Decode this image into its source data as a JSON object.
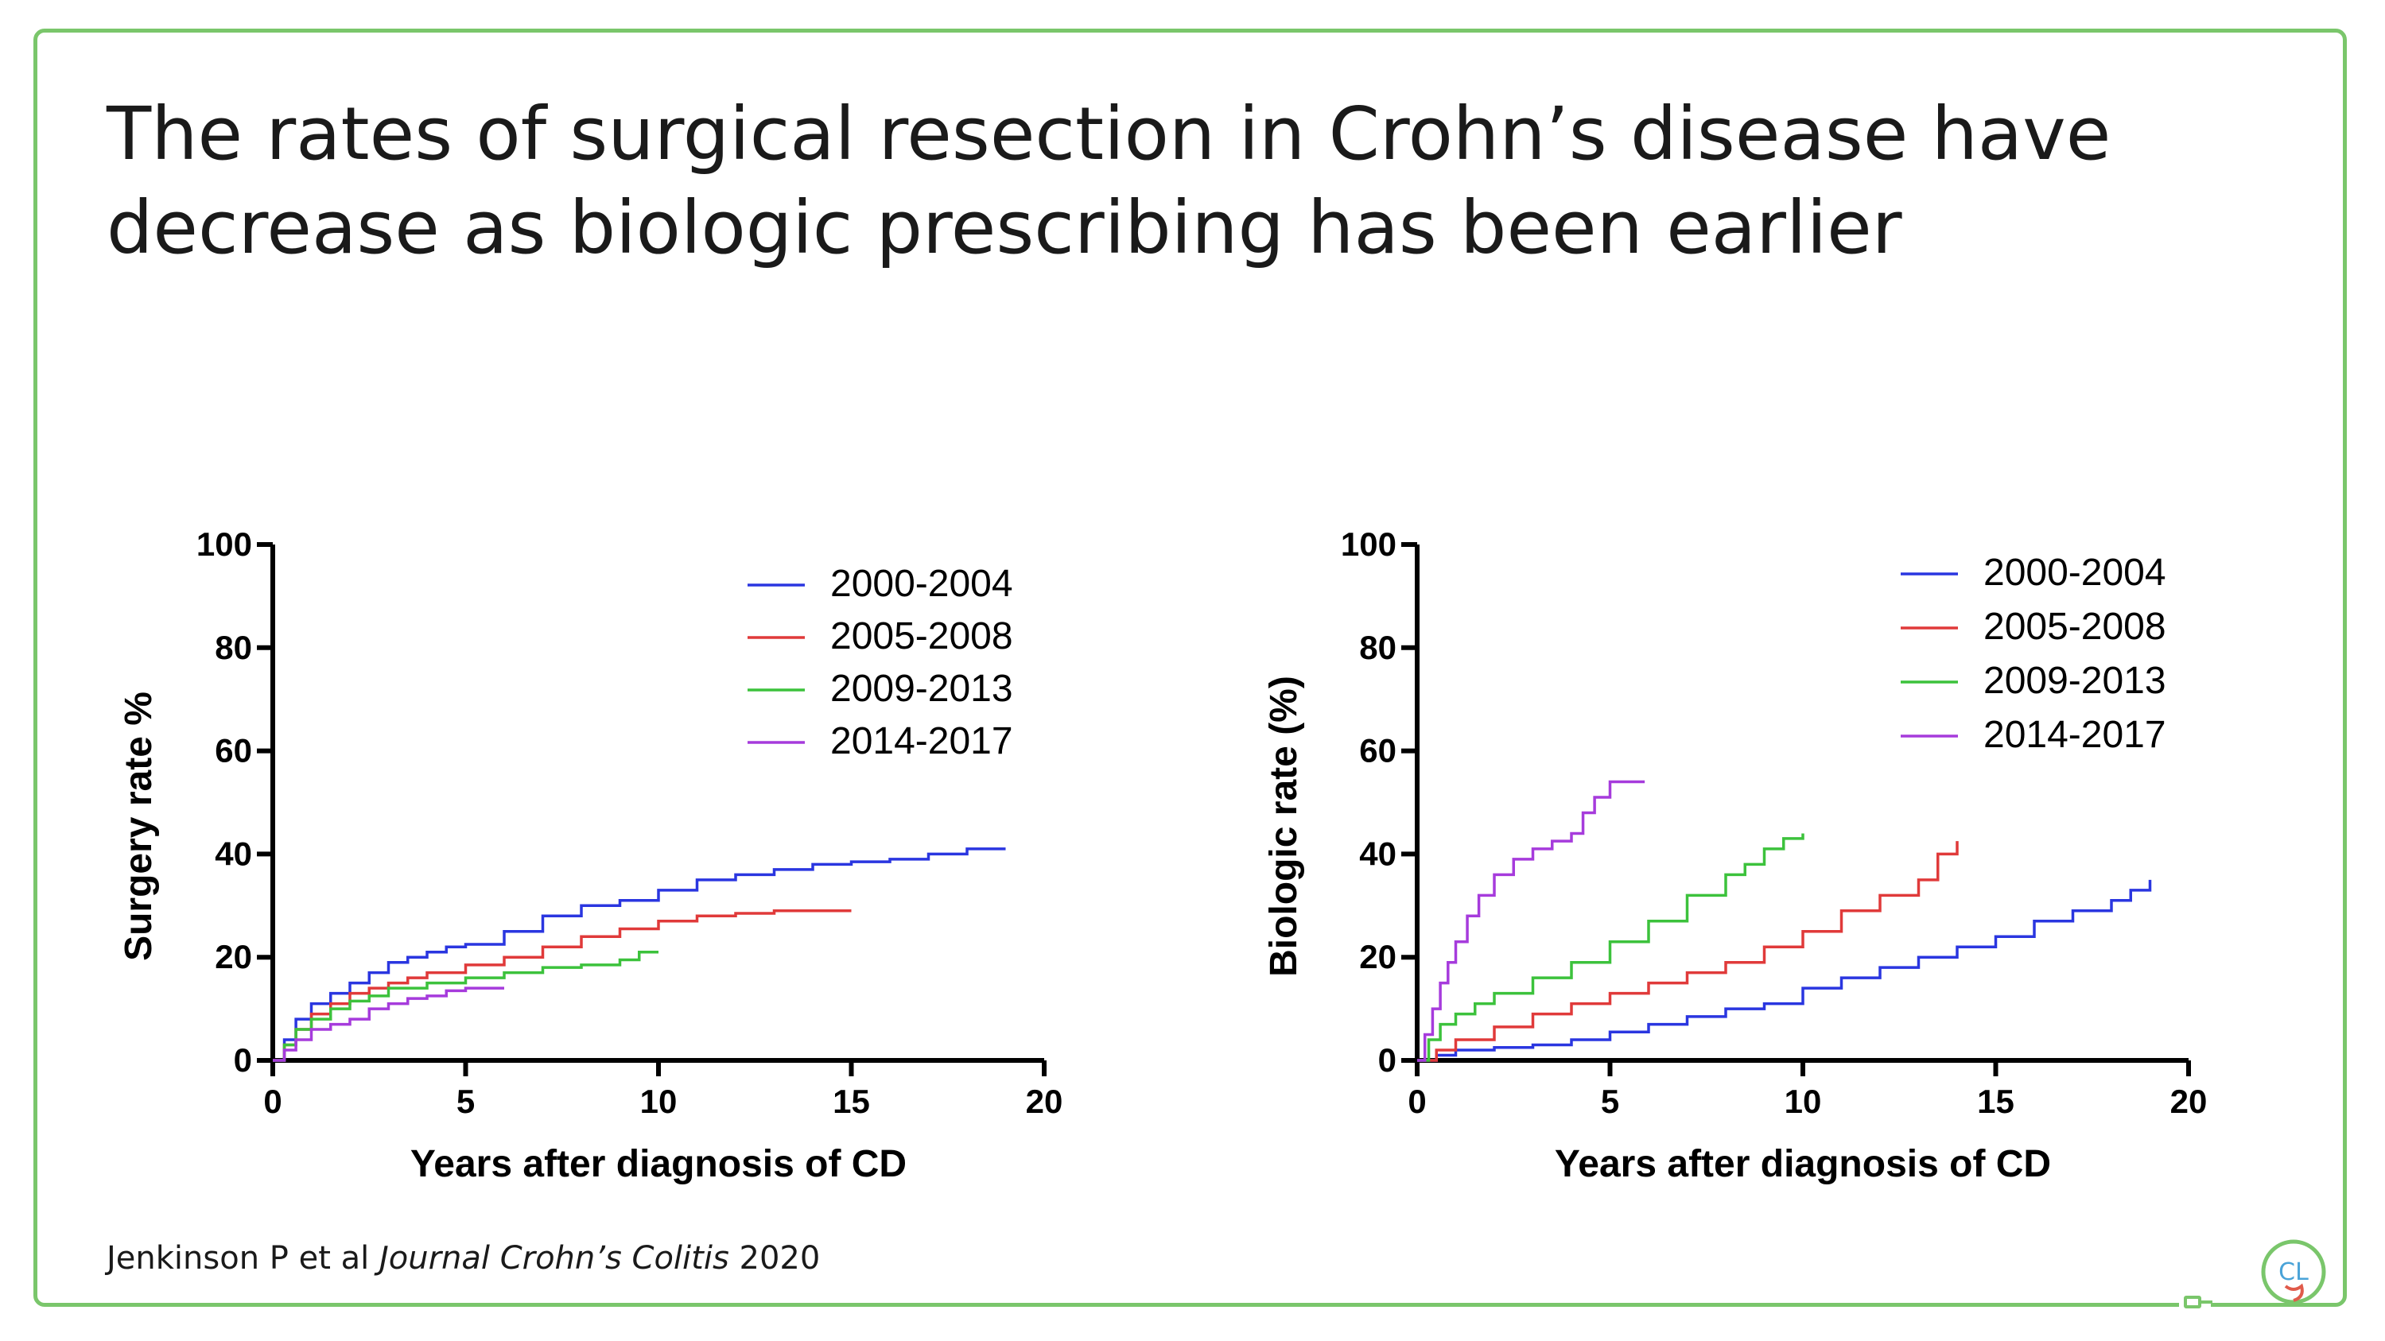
{
  "slide": {
    "title_line1": "The rates of surgical resection in Crohn’s disease have",
    "title_line2": "decrease as biologic prescribing has been earlier",
    "citation_authors": "Jenkinson P et al",
    "citation_journal": "Journal Crohn’s Colitis",
    "citation_year": "2020",
    "logo_text": "CL",
    "frame_color": "#7ac66b"
  },
  "chart_data": [
    {
      "type": "line",
      "title": "",
      "xlabel": "Years after diagnosis of CD",
      "ylabel": "Surgery rate %",
      "xlim": [
        0,
        20
      ],
      "ylim": [
        0,
        100
      ],
      "xticks": [
        0,
        5,
        10,
        15,
        20
      ],
      "yticks": [
        0,
        20,
        40,
        60,
        80,
        100
      ],
      "grid": false,
      "legend_position": "top-right",
      "step": true,
      "series": [
        {
          "name": "2000-2004",
          "color": "#2a36e0",
          "x": [
            0,
            0.3,
            0.6,
            1.0,
            1.5,
            2.0,
            2.5,
            3.0,
            3.5,
            4.0,
            4.5,
            5.0,
            6.0,
            7.0,
            8.0,
            9.0,
            10.0,
            11.0,
            12.0,
            13.0,
            14.0,
            15.0,
            16.0,
            17.0,
            18.0,
            19.0
          ],
          "y": [
            0,
            4,
            8,
            11,
            13,
            15,
            17,
            19,
            20,
            21,
            22,
            22.5,
            25,
            28,
            30,
            31,
            33,
            35,
            36,
            37,
            38,
            38.5,
            39,
            40,
            41,
            41
          ]
        },
        {
          "name": "2005-2008",
          "color": "#e03a3a",
          "x": [
            0,
            0.3,
            0.6,
            1.0,
            1.5,
            2.0,
            2.5,
            3.0,
            3.5,
            4.0,
            5.0,
            6.0,
            7.0,
            8.0,
            9.0,
            10.0,
            11.0,
            12.0,
            13.0,
            14.0,
            15.0
          ],
          "y": [
            0,
            3,
            6,
            9,
            11,
            13,
            14,
            15,
            16,
            17,
            18.5,
            20,
            22,
            24,
            25.5,
            27,
            28,
            28.5,
            29,
            29,
            29
          ]
        },
        {
          "name": "2009-2013",
          "color": "#3cc23c",
          "x": [
            0,
            0.3,
            0.6,
            1.0,
            1.5,
            2.0,
            2.5,
            3.0,
            4.0,
            5.0,
            6.0,
            7.0,
            8.0,
            9.0,
            9.5,
            10.0
          ],
          "y": [
            0,
            3,
            6,
            8,
            10,
            11.5,
            12.5,
            14,
            15,
            16,
            17,
            18,
            18.5,
            19.5,
            21,
            21
          ]
        },
        {
          "name": "2014-2017",
          "color": "#a63bdc",
          "x": [
            0,
            0.3,
            0.6,
            1.0,
            1.5,
            2.0,
            2.5,
            3.0,
            3.5,
            4.0,
            4.5,
            5.0,
            5.5,
            6.0
          ],
          "y": [
            0,
            2,
            4,
            6,
            7,
            8,
            10,
            11,
            12,
            12.5,
            13.5,
            14,
            14,
            14
          ]
        }
      ]
    },
    {
      "type": "line",
      "title": "",
      "xlabel": "Years after diagnosis of CD",
      "ylabel": "Biologic rate (%)",
      "xlim": [
        0,
        20
      ],
      "ylim": [
        0,
        100
      ],
      "xticks": [
        0,
        5,
        10,
        15,
        20
      ],
      "yticks": [
        0,
        20,
        40,
        60,
        80,
        100
      ],
      "grid": false,
      "legend_position": "top-right",
      "step": true,
      "series": [
        {
          "name": "2000-2004",
          "color": "#2a36e0",
          "x": [
            0,
            0.5,
            1.0,
            2.0,
            3.0,
            4.0,
            5.0,
            6.0,
            7.0,
            8.0,
            9.0,
            10.0,
            11.0,
            12.0,
            13.0,
            14.0,
            15.0,
            16.0,
            17.0,
            18.0,
            18.5,
            19.0
          ],
          "y": [
            0,
            1,
            2,
            2.5,
            3,
            4,
            5.5,
            7,
            8.5,
            10,
            11,
            14,
            16,
            18,
            20,
            22,
            24,
            27,
            29,
            31,
            33,
            35
          ]
        },
        {
          "name": "2005-2008",
          "color": "#e03a3a",
          "x": [
            0,
            0.5,
            1.0,
            2.0,
            3.0,
            4.0,
            5.0,
            6.0,
            7.0,
            8.0,
            9.0,
            10.0,
            11.0,
            12.0,
            13.0,
            13.5,
            14.0
          ],
          "y": [
            0,
            2,
            4,
            6.5,
            9,
            11,
            13,
            15,
            17,
            19,
            22,
            25,
            29,
            32,
            35,
            40,
            42.5
          ]
        },
        {
          "name": "2009-2013",
          "color": "#3cc23c",
          "x": [
            0,
            0.3,
            0.6,
            1.0,
            1.5,
            2.0,
            3.0,
            4.0,
            5.0,
            6.0,
            7.0,
            8.0,
            8.5,
            9.0,
            9.5,
            10.0
          ],
          "y": [
            0,
            4,
            7,
            9,
            11,
            13,
            16,
            19,
            23,
            27,
            32,
            36,
            38,
            41,
            43,
            44
          ]
        },
        {
          "name": "2014-2017",
          "color": "#a63bdc",
          "x": [
            0,
            0.2,
            0.4,
            0.6,
            0.8,
            1.0,
            1.3,
            1.6,
            2.0,
            2.5,
            3.0,
            3.5,
            4.0,
            4.3,
            4.6,
            5.0,
            5.5,
            5.9
          ],
          "y": [
            0,
            5,
            10,
            15,
            19,
            23,
            28,
            32,
            36,
            39,
            41,
            42.5,
            44,
            48,
            51,
            54,
            54,
            54
          ]
        }
      ]
    }
  ]
}
